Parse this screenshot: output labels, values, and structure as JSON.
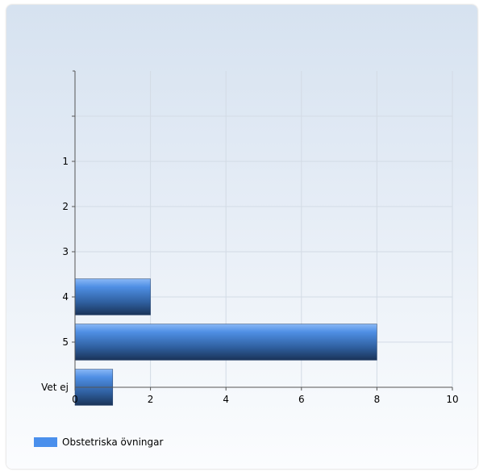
{
  "chart_data": {
    "type": "bar",
    "orientation": "horizontal",
    "title": "",
    "xlabel": "",
    "ylabel": "",
    "categories": [
      "",
      "1",
      "2",
      "3",
      "4",
      "5",
      "Vet ej"
    ],
    "series": [
      {
        "name": "Obstetriska övningar",
        "values": [
          0,
          0,
          0,
          0,
          2,
          8,
          1
        ]
      }
    ],
    "xlim": [
      0,
      10
    ],
    "xticks": [
      0,
      2,
      4,
      6,
      8,
      10
    ],
    "grid": true,
    "legend_position": "bottom-left",
    "colors": {
      "bar": "#4a8fec",
      "bar_dark": "#1e3a64",
      "grid": "#d3dbe5",
      "axis": "#555555"
    }
  }
}
